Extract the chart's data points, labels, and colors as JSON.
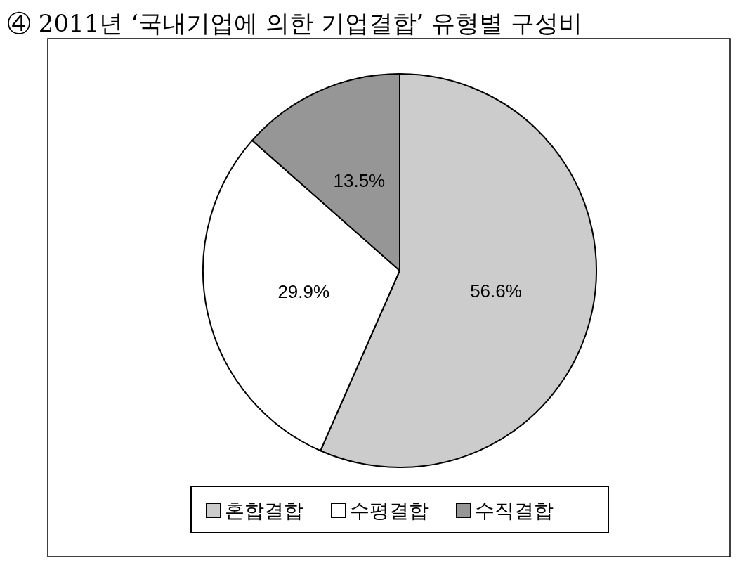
{
  "chart_data": {
    "type": "pie",
    "title": "④ 2011년 ‘국내기업에 의한 기업결합’ 유형별 구성비",
    "categories": [
      "혼합결합",
      "수평결합",
      "수직결합"
    ],
    "values": [
      56.6,
      29.9,
      13.5
    ],
    "colors": [
      "#cccccc",
      "#ffffff",
      "#969696"
    ],
    "value_labels": [
      "56.6%",
      "29.9%",
      "13.5%"
    ],
    "legend": "bottom"
  }
}
